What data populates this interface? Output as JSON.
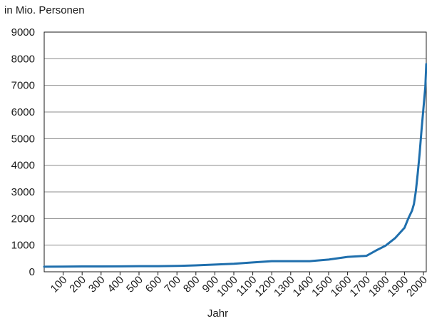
{
  "chart_data": {
    "type": "line",
    "title": "",
    "unit_label": "in Mio. Personen",
    "xlabel": "Jahr",
    "ylabel": "",
    "xlim": [
      0,
      2015
    ],
    "ylim": [
      0,
      9000
    ],
    "y_ticks": [
      0,
      1000,
      2000,
      3000,
      4000,
      5000,
      6000,
      7000,
      8000,
      9000
    ],
    "x_ticks": [
      100,
      200,
      300,
      400,
      500,
      600,
      700,
      800,
      900,
      1000,
      1100,
      1200,
      1300,
      1400,
      1500,
      1600,
      1700,
      1800,
      1900,
      2000
    ],
    "grid": "horizontal",
    "legend": "none",
    "line_color": "#1f6fad",
    "series": [
      {
        "x": [
          0,
          100,
          200,
          300,
          400,
          500,
          600,
          700,
          800,
          900,
          1000,
          1100,
          1200,
          1300,
          1400,
          1500,
          1600,
          1700,
          1750,
          1800,
          1850,
          1900,
          1920,
          1940,
          1950,
          1960,
          1970,
          1980,
          1990,
          2000,
          2010,
          2015
        ],
        "values": [
          190,
          195,
          200,
          200,
          205,
          210,
          210,
          220,
          240,
          270,
          300,
          350,
          400,
          400,
          400,
          460,
          560,
          600,
          800,
          980,
          1260,
          1650,
          2000,
          2300,
          2550,
          3030,
          3700,
          4450,
          5330,
          6140,
          6950,
          7800
        ]
      }
    ]
  }
}
